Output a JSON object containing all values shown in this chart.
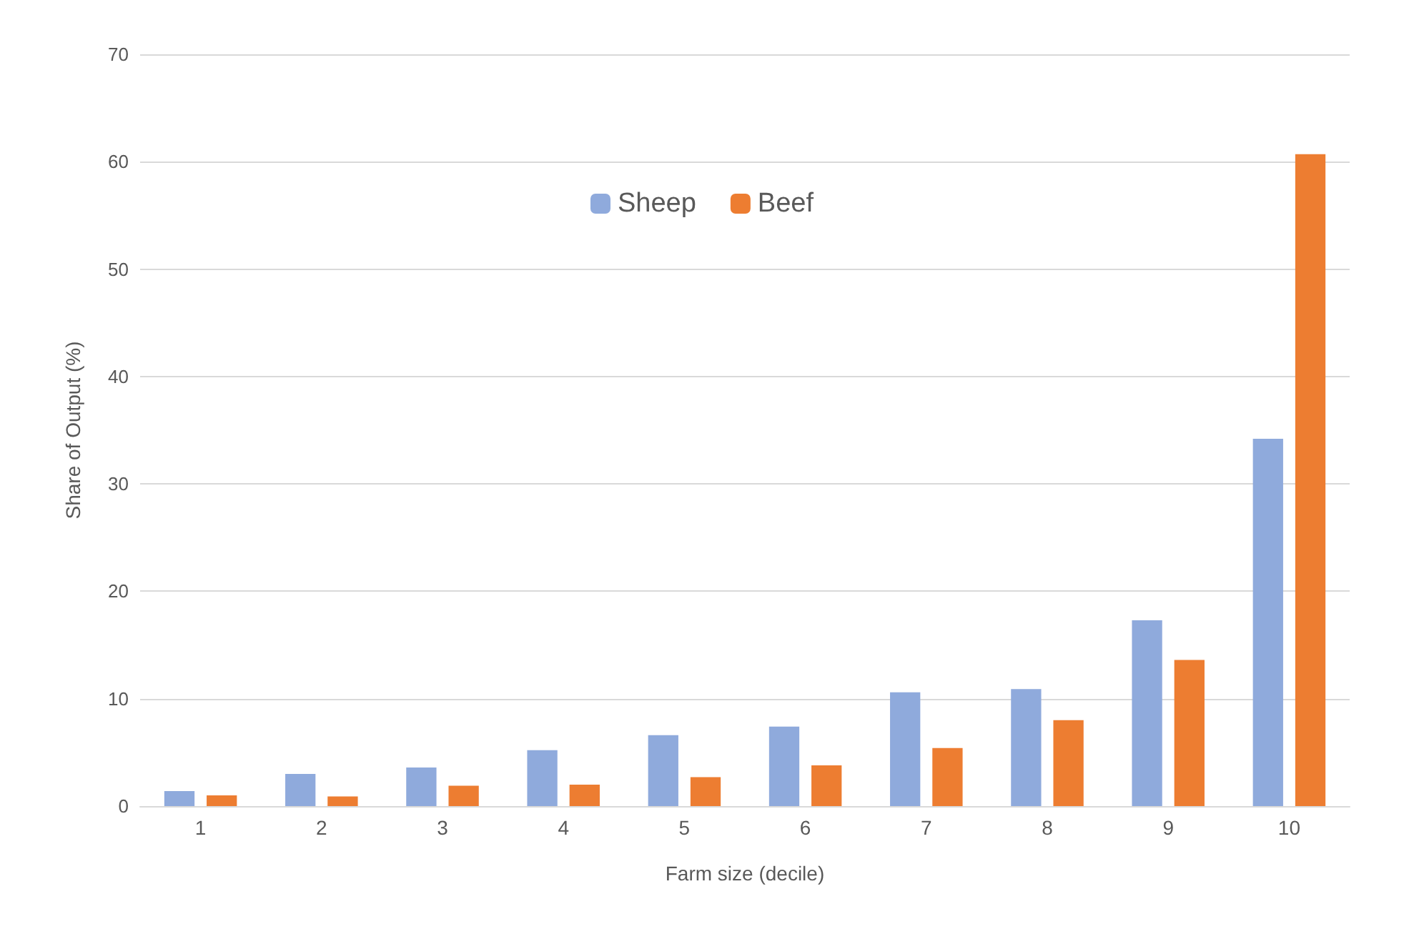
{
  "chart_data": {
    "type": "bar",
    "xlabel": "Farm size (decile)",
    "ylabel": "Share of Output (%)",
    "categories": [
      "1",
      "2",
      "3",
      "4",
      "5",
      "6",
      "7",
      "8",
      "9",
      "10"
    ],
    "series": [
      {
        "name": "Sheep",
        "color": "#8faadc",
        "values": [
          1.4,
          3.0,
          3.6,
          5.2,
          6.6,
          7.4,
          10.6,
          10.9,
          17.3,
          34.2
        ]
      },
      {
        "name": "Beef",
        "color": "#ed7d31",
        "values": [
          1.0,
          0.9,
          1.9,
          2.0,
          2.7,
          3.8,
          5.4,
          8.0,
          13.6,
          60.7
        ]
      }
    ],
    "ylim": [
      0,
      70
    ],
    "yticks": [
      0,
      10,
      20,
      30,
      40,
      50,
      60,
      70
    ],
    "grid": "y",
    "legend": "top"
  }
}
